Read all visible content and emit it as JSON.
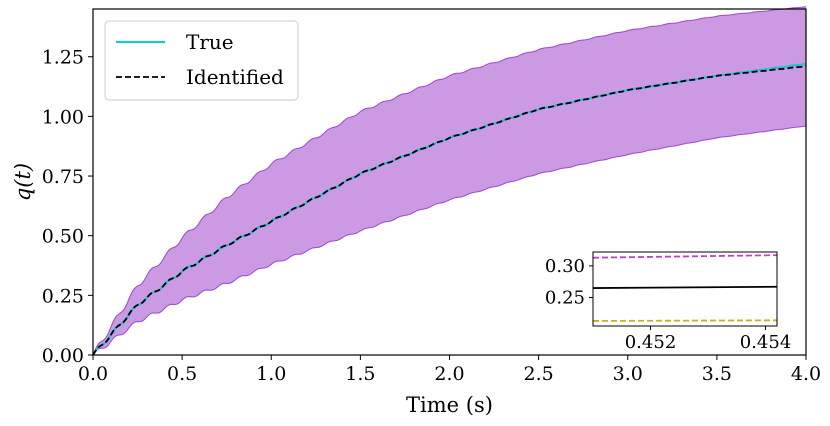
{
  "chart_data": [
    {
      "type": "line",
      "xlabel": "Time (s)",
      "ylabel": "q(t)",
      "xlim": [
        0.0,
        4.0
      ],
      "ylim": [
        0.0,
        1.45
      ],
      "x_ticks": [
        "0.0",
        "0.5",
        "1.0",
        "1.5",
        "2.0",
        "2.5",
        "3.0",
        "3.5",
        "4.0"
      ],
      "y_ticks": [
        "0.00",
        "0.25",
        "0.50",
        "0.75",
        "1.00",
        "1.25"
      ],
      "legend": {
        "placement": "top-left",
        "entries": [
          "True",
          "Identified"
        ]
      },
      "colors": {
        "true": "#22c3d3",
        "identified": "#000000",
        "band_fill": "#cc99e3",
        "band_edge": "#9b47cf"
      },
      "series": [
        {
          "name": "True",
          "style": "solid",
          "x": [
            0,
            0.25,
            0.5,
            0.75,
            1.0,
            1.5,
            2.0,
            2.5,
            3.0,
            3.5,
            4.0
          ],
          "values": [
            0,
            0.21,
            0.35,
            0.46,
            0.56,
            0.76,
            0.91,
            1.03,
            1.11,
            1.17,
            1.22
          ]
        },
        {
          "name": "Identified",
          "style": "dashed",
          "x": [
            0,
            0.25,
            0.5,
            0.75,
            1.0,
            1.5,
            2.0,
            2.5,
            3.0,
            3.5,
            4.0
          ],
          "values": [
            0,
            0.21,
            0.35,
            0.46,
            0.56,
            0.76,
            0.91,
            1.03,
            1.11,
            1.17,
            1.21
          ]
        }
      ],
      "band": {
        "x": [
          0,
          0.25,
          0.5,
          0.75,
          1.0,
          1.5,
          2.0,
          2.5,
          3.0,
          3.5,
          4.0
        ],
        "upper": [
          0,
          0.29,
          0.49,
          0.66,
          0.8,
          1.02,
          1.17,
          1.28,
          1.36,
          1.42,
          1.46
        ],
        "lower": [
          0,
          0.14,
          0.23,
          0.3,
          0.38,
          0.52,
          0.65,
          0.76,
          0.84,
          0.91,
          0.96
        ]
      }
    },
    {
      "type": "line",
      "placement": "bottom-right inset",
      "xlim": [
        0.451,
        0.4542
      ],
      "ylim": [
        0.205,
        0.322
      ],
      "x_ticks": [
        "0.452",
        "0.454"
      ],
      "y_ticks": [
        "0.30",
        "0.25"
      ],
      "series": [
        {
          "style": "dashed",
          "color": "#c040c0",
          "x": [
            0.451,
            0.4542
          ],
          "values": [
            0.313,
            0.317
          ]
        },
        {
          "style": "solid",
          "color": "#000000",
          "x": [
            0.451,
            0.4542
          ],
          "values": [
            0.265,
            0.267
          ]
        },
        {
          "style": "dashed",
          "color": "#c8b020",
          "x": [
            0.451,
            0.4542
          ],
          "values": [
            0.213,
            0.214
          ]
        }
      ]
    }
  ]
}
